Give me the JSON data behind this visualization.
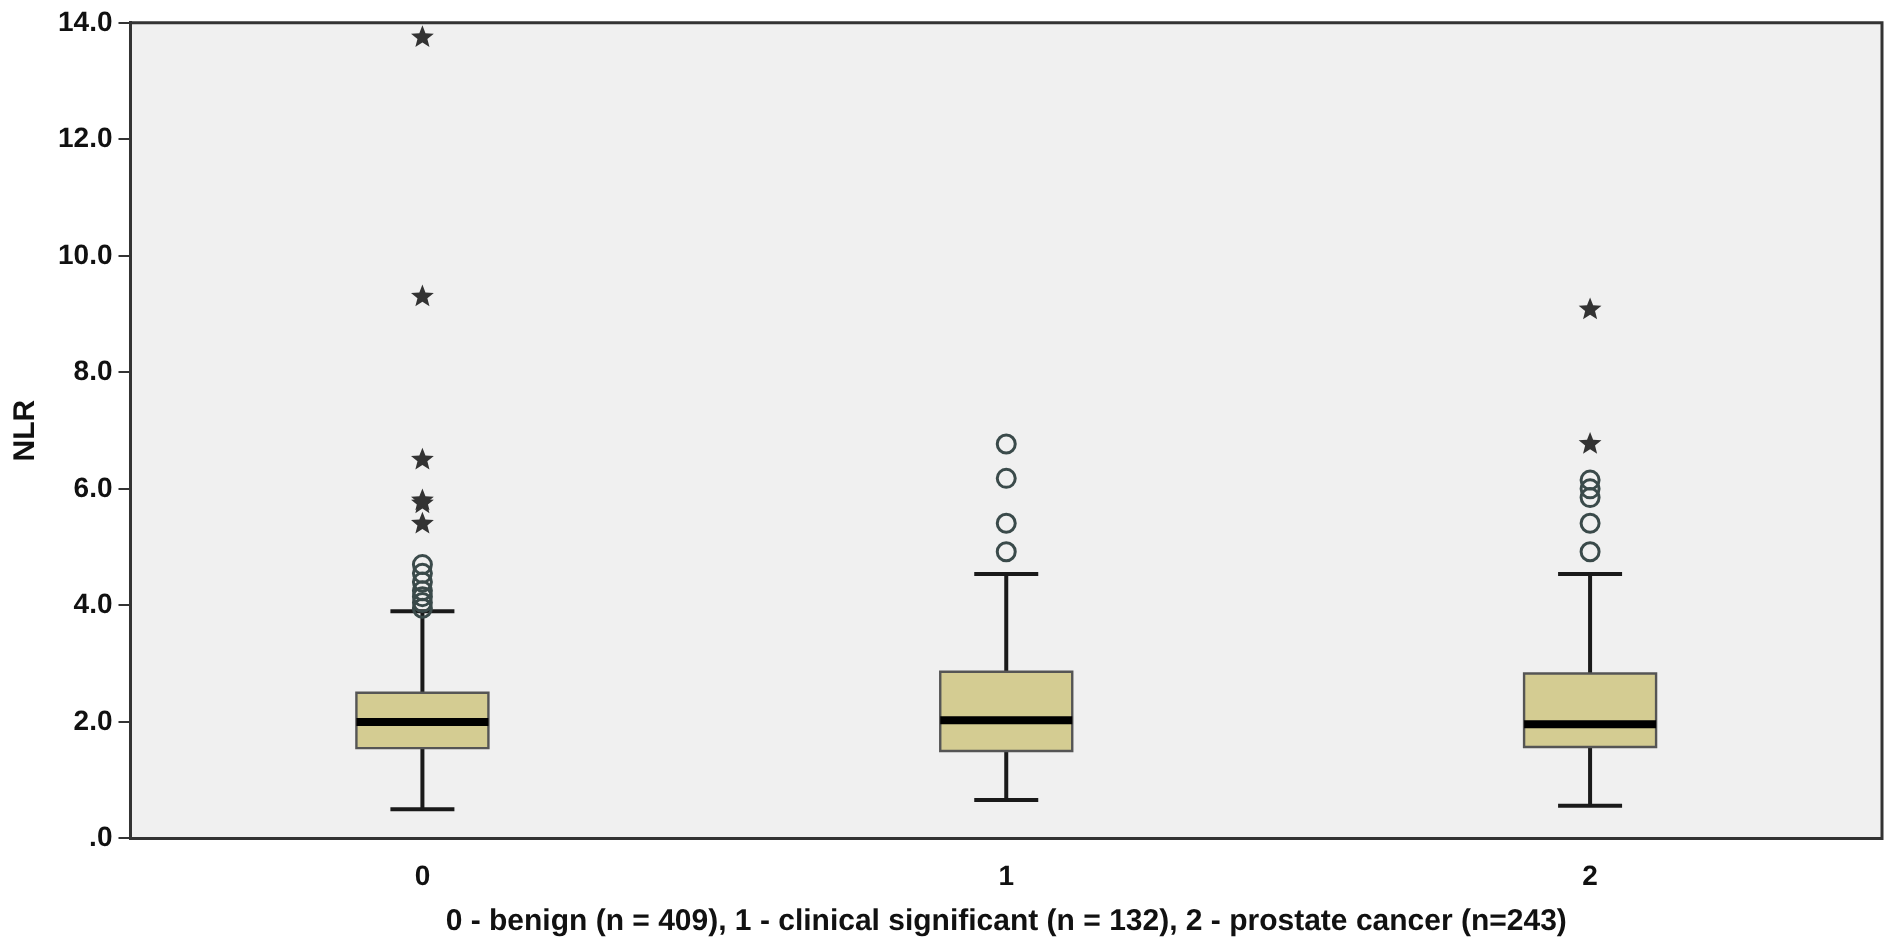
{
  "chart_data": {
    "type": "box",
    "xlabel": "0 - benign (n = 409), 1 - clinical significant (n = 132), 2 - prostate cancer (n=243)",
    "ylabel": "NLR",
    "categories": [
      "0",
      "1",
      "2"
    ],
    "ylim": [
      0,
      14
    ],
    "yticks": [
      {
        "value": 0,
        "label": ".0"
      },
      {
        "value": 2,
        "label": "2.0"
      },
      {
        "value": 4,
        "label": "4.0"
      },
      {
        "value": 6,
        "label": "6.0"
      },
      {
        "value": 8,
        "label": "8.0"
      },
      {
        "value": 10,
        "label": "10.0"
      },
      {
        "value": 12,
        "label": "12.0"
      },
      {
        "value": 14,
        "label": "14.0"
      }
    ],
    "grid": false,
    "legend": false,
    "series": [
      {
        "color": "#d4cc92",
        "marker": "circle",
        "boxes": [
          {
            "low": 0.5,
            "q1": 1.55,
            "median": 2.0,
            "q3": 2.5,
            "high": 3.9,
            "outliers": [
              3.95,
              4.05,
              4.15,
              4.25,
              4.4,
              4.55,
              4.7
            ]
          },
          {
            "low": 0.66,
            "q1": 1.5,
            "median": 2.03,
            "q3": 2.86,
            "high": 4.54,
            "outliers": [
              4.92,
              5.41,
              6.18,
              6.77
            ]
          },
          {
            "low": 0.56,
            "q1": 1.57,
            "median": 1.96,
            "q3": 2.83,
            "high": 4.54,
            "outliers": [
              4.92,
              5.41,
              5.85,
              6.0,
              6.15
            ]
          }
        ]
      },
      {
        "type": "scatter",
        "marker": "star",
        "color": "#333333",
        "x": [
          "0",
          "0",
          "0",
          "0",
          "0",
          "0",
          "2",
          "2"
        ],
        "values": [
          5.4,
          5.75,
          5.8,
          6.5,
          9.3,
          13.75,
          6.77,
          9.08
        ]
      }
    ]
  }
}
